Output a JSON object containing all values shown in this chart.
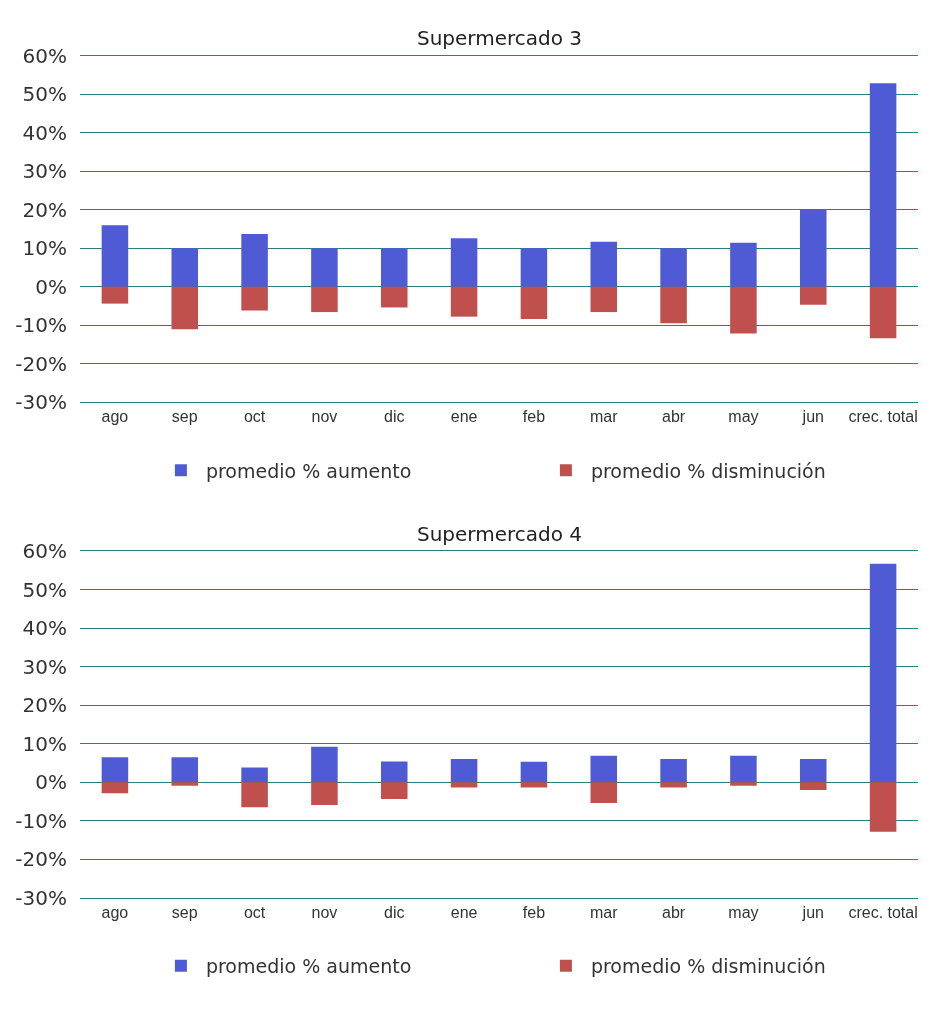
{
  "chart_data": [
    {
      "type": "bar",
      "title": "Supermercado 3",
      "stacked": true,
      "grid": "y",
      "legend": "bottom",
      "categories": [
        "ago",
        "sep",
        "oct",
        "nov",
        "dic",
        "ene",
        "feb",
        "mar",
        "abr",
        "may",
        "jun",
        "crec. total"
      ],
      "series": [
        {
          "name": "promedio % aumento",
          "color": "#4f5bd5",
          "values": [
            16,
            10,
            13.7,
            10,
            10,
            12.6,
            10,
            11.7,
            10,
            11.4,
            20,
            52.9
          ]
        },
        {
          "name": "promedio % disminución",
          "color": "#c0504d",
          "values": [
            -4.4,
            -11.1,
            -6.2,
            -6.6,
            -5.4,
            -7.8,
            -8.4,
            -6.6,
            -9.5,
            -12.2,
            -4.7,
            -13.4
          ]
        }
      ],
      "ylim": [
        -30,
        60
      ],
      "yticks": [
        {
          "value": -30,
          "label": "-30%"
        },
        {
          "value": -20,
          "label": "-20%"
        },
        {
          "value": -10,
          "label": "-10%"
        },
        {
          "value": 0,
          "label": "0%"
        },
        {
          "value": 10,
          "label": "10%"
        },
        {
          "value": 20,
          "label": "20%"
        },
        {
          "value": 30,
          "label": "30%"
        },
        {
          "value": 40,
          "label": "40%"
        },
        {
          "value": 50,
          "label": "50%"
        },
        {
          "value": 60,
          "label": "60%"
        }
      ]
    },
    {
      "type": "bar",
      "title": "Supermercado 4",
      "stacked": true,
      "grid": "y",
      "legend": "bottom",
      "categories": [
        "ago",
        "sep",
        "oct",
        "nov",
        "dic",
        "ene",
        "feb",
        "mar",
        "abr",
        "may",
        "jun",
        "crec. total"
      ],
      "series": [
        {
          "name": "promedio % aumento",
          "color": "#4f5bd5",
          "values": [
            6.5,
            6.5,
            3.8,
            9.2,
            5.4,
            6.0,
            5.3,
            6.9,
            6.0,
            6.9,
            6.0,
            56.8
          ]
        },
        {
          "name": "promedio % disminución",
          "color": "#c0504d",
          "values": [
            -2.9,
            -0.9,
            -6.5,
            -5.9,
            -4.4,
            -1.4,
            -1.4,
            -5.4,
            -1.4,
            -0.9,
            -2.0,
            -12.9
          ]
        }
      ],
      "ylim": [
        -30,
        60
      ],
      "yticks": [
        {
          "value": -30,
          "label": "-30%"
        },
        {
          "value": -20,
          "label": "-20%"
        },
        {
          "value": -10,
          "label": "-10%"
        },
        {
          "value": 0,
          "label": "0%"
        },
        {
          "value": 10,
          "label": "10%"
        },
        {
          "value": 20,
          "label": "20%"
        },
        {
          "value": 30,
          "label": "30%"
        },
        {
          "value": 40,
          "label": "40%"
        },
        {
          "value": 50,
          "label": "50%"
        },
        {
          "value": 60,
          "label": "60%"
        }
      ]
    }
  ]
}
